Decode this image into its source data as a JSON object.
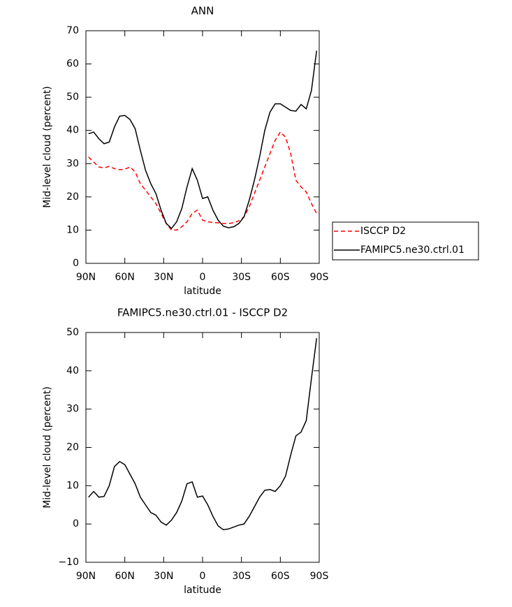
{
  "chart_data": [
    {
      "type": "line",
      "title": "ANN",
      "xlabel": "latitude",
      "ylabel": "Mid-level cloud (percent)",
      "x": [
        88,
        84,
        80,
        76,
        72,
        68,
        64,
        60,
        56,
        52,
        48,
        44,
        40,
        36,
        32,
        28,
        24,
        20,
        16,
        12,
        8,
        4,
        0,
        -4,
        -8,
        -12,
        -16,
        -20,
        -24,
        -28,
        -32,
        -36,
        -40,
        -44,
        -48,
        -52,
        -56,
        -60,
        -64,
        -68,
        -72,
        -76,
        -80,
        -84,
        -88
      ],
      "series": [
        {
          "name": "ISCCP D2",
          "color": "#ff0000",
          "dash": "dashed",
          "values": [
            32,
            30.5,
            29,
            28.7,
            29.2,
            28.5,
            28.2,
            28.3,
            29,
            27.5,
            24,
            22,
            20,
            18,
            15,
            12,
            10,
            10,
            11,
            12.5,
            15,
            16,
            13,
            12.5,
            12.3,
            12.2,
            12,
            12,
            12.2,
            12.8,
            14,
            17,
            21,
            25,
            29,
            33,
            37,
            39.5,
            38,
            33,
            25,
            23,
            21.5,
            18,
            15
          ]
        },
        {
          "name": "FAMIPC5.ne30.ctrl.01",
          "color": "#000000",
          "dash": "solid",
          "values": [
            39,
            39.5,
            37.5,
            36,
            36.5,
            41,
            44.3,
            44.5,
            43.3,
            40.5,
            34,
            28,
            24,
            21,
            16,
            12,
            10.5,
            12.5,
            16.5,
            23,
            28.5,
            25,
            19.5,
            20,
            16,
            13,
            11.2,
            10.7,
            11,
            12,
            14,
            19,
            25,
            32,
            40,
            45.5,
            48,
            48,
            47,
            46,
            45.8,
            47.8,
            46.5,
            52,
            64
          ]
        }
      ],
      "xlim": [
        90,
        -90
      ],
      "xticks": [
        {
          "value": 90,
          "label": "90N"
        },
        {
          "value": 60,
          "label": "60N"
        },
        {
          "value": 30,
          "label": "30N"
        },
        0,
        {
          "value": -30,
          "label": "30S"
        },
        {
          "value": -60,
          "label": "60S"
        },
        {
          "value": -90,
          "label": "90S"
        }
      ],
      "ylim": [
        0,
        70
      ],
      "yticks": [
        0,
        10,
        20,
        30,
        40,
        50,
        60,
        70
      ],
      "legend": "right"
    },
    {
      "type": "line",
      "title": "FAMIPC5.ne30.ctrl.01 - ISCCP D2",
      "xlabel": "latitude",
      "ylabel": "Mid-level cloud (percent)",
      "x": [
        88,
        84,
        80,
        76,
        72,
        68,
        64,
        60,
        56,
        52,
        48,
        44,
        40,
        36,
        32,
        28,
        24,
        20,
        16,
        12,
        8,
        4,
        0,
        -4,
        -8,
        -12,
        -16,
        -20,
        -24,
        -28,
        -32,
        -36,
        -40,
        -44,
        -48,
        -52,
        -56,
        -60,
        -64,
        -68,
        -72,
        -76,
        -80,
        -84,
        -88
      ],
      "series": [
        {
          "color": "#000000",
          "dash": "solid",
          "values": [
            7,
            8.5,
            7,
            7.2,
            10,
            15,
            16.3,
            15.5,
            13,
            10.5,
            7,
            5,
            3,
            2.3,
            0.5,
            -0.3,
            1,
            3,
            6,
            10.5,
            11,
            7,
            7.3,
            5,
            2,
            -0.5,
            -1.5,
            -1.3,
            -0.8,
            -0.3,
            0,
            2,
            4.5,
            7,
            8.8,
            9,
            8.5,
            10,
            12.5,
            18,
            23,
            24,
            27,
            38,
            48.5
          ]
        }
      ],
      "xlim": [
        90,
        -90
      ],
      "xticks": [
        {
          "value": 90,
          "label": "90N"
        },
        {
          "value": 60,
          "label": "60N"
        },
        {
          "value": 30,
          "label": "30N"
        },
        0,
        {
          "value": -30,
          "label": "30S"
        },
        {
          "value": -60,
          "label": "60S"
        },
        {
          "value": -90,
          "label": "90S"
        }
      ],
      "ylim": [
        -10,
        50
      ],
      "yticks": [
        {
          "value": -10,
          "label": "−10"
        },
        0,
        10,
        20,
        30,
        40,
        50
      ]
    }
  ]
}
